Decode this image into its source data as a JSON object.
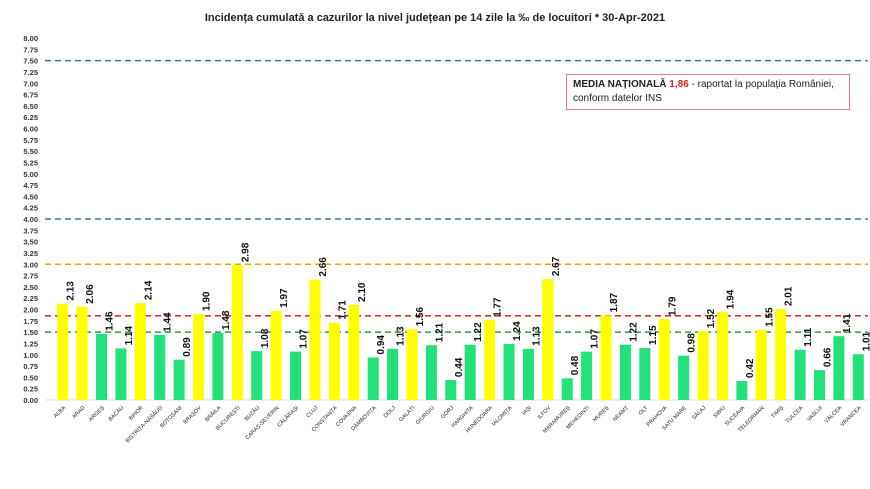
{
  "chart_data": {
    "type": "bar",
    "title": "Incidența cumulată a cazurilor la nivel județean pe 14 zile la ‰ de locuitori *   30-Apr-2021",
    "ylim": [
      0,
      8
    ],
    "yticks": [
      "0.00",
      "0.25",
      "0.50",
      "0.75",
      "1.00",
      "1.25",
      "1.50",
      "1.75",
      "2.00",
      "2.25",
      "2.50",
      "2.75",
      "3.00",
      "3.25",
      "3.50",
      "3.75",
      "4.00",
      "4.25",
      "4.50",
      "4.75",
      "5.00",
      "5.25",
      "5.50",
      "5.75",
      "6.00",
      "6.25",
      "6.50",
      "6.75",
      "7.00",
      "7.25",
      "7.50",
      "7.75",
      "8.00"
    ],
    "categories": [
      "ALBA",
      "ARAD",
      "ARGEȘ",
      "BACĂU",
      "BIHOR",
      "BISTRIȚA-NĂSĂUD",
      "BOTOȘANI",
      "BRAȘOV",
      "BRĂILA",
      "BUCUREȘTI",
      "BUZĂU",
      "CARAȘ-SEVERIN",
      "CĂLĂRAȘI",
      "CLUJ",
      "CONSTANȚA",
      "COVASNA",
      "DÂMBOVIȚA",
      "DOLJ",
      "GALAȚI",
      "GIURGIU",
      "GORJ",
      "HARGHITA",
      "HUNEDOARA",
      "IALOMIȚA",
      "IAȘI",
      "ILFOV",
      "MARAMUREȘ",
      "MEHEDINȚI",
      "MUREȘ",
      "NEAMȚ",
      "OLT",
      "PRAHOVA",
      "SATU MARE",
      "SĂLAJ",
      "SIBIU",
      "SUCEAVA",
      "TELEORMAN",
      "TIMIȘ",
      "TULCEA",
      "VASLUI",
      "VÂLCEA",
      "VRANCEA"
    ],
    "values": [
      2.13,
      2.06,
      1.46,
      1.14,
      2.14,
      1.44,
      0.89,
      1.9,
      1.48,
      2.98,
      1.08,
      1.97,
      1.07,
      2.66,
      1.71,
      2.1,
      0.94,
      1.13,
      1.56,
      1.21,
      0.44,
      1.22,
      1.77,
      1.24,
      1.13,
      2.67,
      0.48,
      1.07,
      1.87,
      1.22,
      1.15,
      1.79,
      0.98,
      1.52,
      1.94,
      0.42,
      1.55,
      2.01,
      1.11,
      0.66,
      1.41,
      1.01
    ],
    "labels": [
      "2.13",
      "2.06",
      "1.46",
      "1.14",
      "2.14",
      "1.44",
      "0.89",
      "1.90",
      "1.48",
      "2.98",
      "1.08",
      "1.97",
      "1.07",
      "2.66",
      "1.71",
      "2.10",
      "0.94",
      "1.13",
      "1.56",
      "1.21",
      "0.44",
      "1.22",
      "1.77",
      "1.24",
      "1.13",
      "2.67",
      "0.48",
      "1.07",
      "1.87",
      "1.22",
      "1.15",
      "1.79",
      "0.98",
      "1.52",
      "1.94",
      "0.42",
      "1.55",
      "2.01",
      "1.11",
      "0.66",
      "1.41",
      "1.01"
    ],
    "colors": {
      "high": "#ffff00",
      "low": "#22e07a"
    },
    "threshold": 1.5,
    "reference_lines": [
      {
        "value": 7.5,
        "color": "#2e75b6"
      },
      {
        "value": 4.0,
        "color": "#2e75b6"
      },
      {
        "value": 3.0,
        "color": "#e0b000"
      },
      {
        "value": 1.86,
        "color": "#e03030"
      },
      {
        "value": 1.5,
        "color": "#20a040"
      }
    ],
    "grid": false
  },
  "note": {
    "heading": "MEDIA NAȚIONALĂ",
    "value": "1,86",
    "text": "- raportat la populația României, conform datelor INS"
  }
}
